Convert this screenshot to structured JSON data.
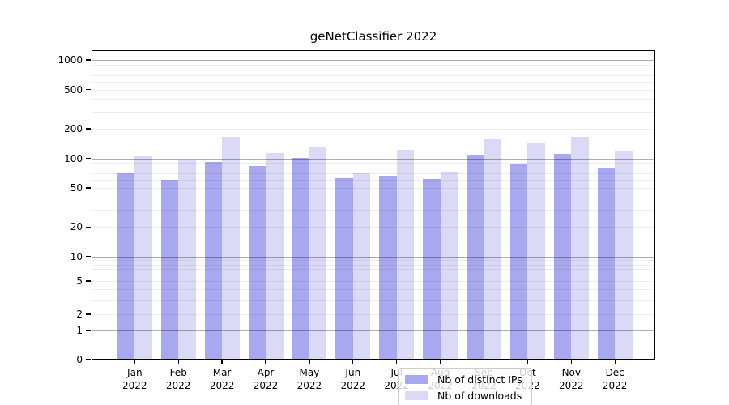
{
  "chart_data": {
    "type": "bar",
    "title": "geNetClassifier 2022",
    "categories": [
      "Jan",
      "Feb",
      "Mar",
      "Apr",
      "May",
      "Jun",
      "Jul",
      "Aug",
      "Sep",
      "Oct",
      "Nov",
      "Dec"
    ],
    "year_label": "2022",
    "series": [
      {
        "name": "Nb of distinct IPs",
        "color": "#a8a8f0",
        "values": [
          72,
          61,
          92,
          83,
          102,
          63,
          66,
          62,
          110,
          86,
          112,
          80
        ]
      },
      {
        "name": "Nb of downloads",
        "color": "#dadaf6",
        "values": [
          107,
          96,
          164,
          114,
          131,
          72,
          122,
          73,
          157,
          143,
          164,
          117
        ]
      }
    ],
    "y_ticks": [
      0,
      1,
      2,
      5,
      10,
      20,
      50,
      100,
      200,
      500,
      1000
    ],
    "y_minor_grid": [
      3,
      4,
      6,
      7,
      8,
      9,
      30,
      40,
      60,
      70,
      80,
      90,
      300,
      400,
      600,
      700,
      800,
      900
    ],
    "y_scale": "symlog",
    "xlabel": "",
    "ylabel": "",
    "grid": "major+minor horizontal",
    "legend_position": "lower center inside plot"
  },
  "colors": {
    "major_grid": "rgba(0,0,0,0.32)",
    "minor_grid": "rgba(0,0,0,0.07)",
    "axis": "#000000",
    "background": "#ffffff"
  }
}
